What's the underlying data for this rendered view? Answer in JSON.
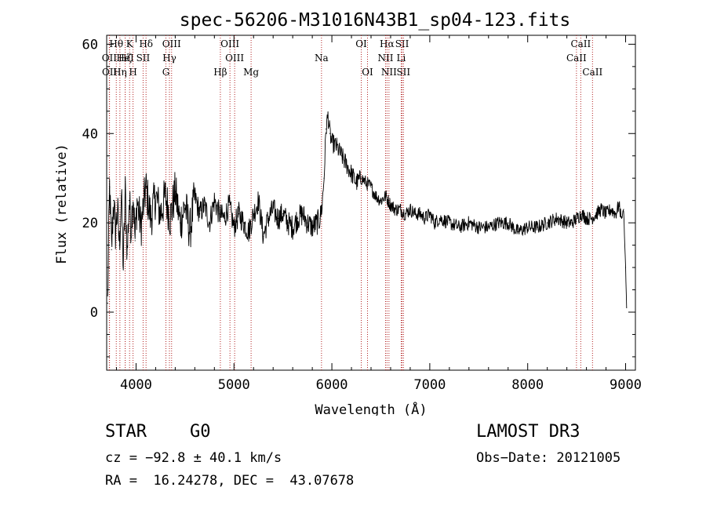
{
  "chart_data": {
    "type": "line",
    "title": "spec-56206-M31016N43B1_sp04-123.fits",
    "xlabel": "Wavelength (Å)",
    "ylabel": "Flux (relative)",
    "xlim": [
      3700,
      9100
    ],
    "ylim": [
      -13,
      62
    ],
    "x_ticks": [
      4000,
      5000,
      6000,
      7000,
      8000,
      9000
    ],
    "y_ticks": [
      0,
      20,
      40,
      60
    ],
    "line_color": "#000000",
    "marker_color": "#b22222",
    "series": [
      {
        "name": "flux",
        "x": [
          3710,
          3730,
          3750,
          3770,
          3790,
          3810,
          3830,
          3850,
          3870,
          3890,
          3910,
          3930,
          3950,
          3970,
          3990,
          4010,
          4050,
          4100,
          4150,
          4200,
          4250,
          4300,
          4350,
          4400,
          4450,
          4500,
          4550,
          4600,
          4650,
          4700,
          4750,
          4800,
          4850,
          4900,
          4950,
          5000,
          5050,
          5100,
          5150,
          5200,
          5250,
          5300,
          5350,
          5400,
          5450,
          5500,
          5550,
          5600,
          5650,
          5700,
          5750,
          5800,
          5850,
          5880,
          5900,
          5920,
          5940,
          5960,
          5980,
          6000,
          6050,
          6100,
          6150,
          6200,
          6250,
          6300,
          6350,
          6400,
          6450,
          6500,
          6550,
          6600,
          6650,
          6700,
          6750,
          6800,
          6850,
          6900,
          6950,
          7000,
          7050,
          7100,
          7200,
          7300,
          7400,
          7500,
          7600,
          7700,
          7800,
          7900,
          8000,
          8100,
          8200,
          8300,
          8400,
          8450,
          8500,
          8550,
          8600,
          8650,
          8700,
          8750,
          8800,
          8850,
          8900,
          8930,
          8960,
          8980,
          9000,
          9010
        ],
        "y": [
          2,
          28,
          14,
          25,
          18,
          23,
          15,
          26,
          10,
          27,
          13,
          25,
          19,
          27,
          16,
          25,
          19,
          28,
          21,
          26,
          22,
          26,
          21,
          27,
          20,
          24,
          18,
          26,
          22,
          24,
          20,
          25,
          22,
          21,
          24,
          19,
          22,
          20,
          18,
          22,
          25,
          17,
          21,
          23,
          21,
          22,
          20,
          19,
          21,
          22,
          20,
          19,
          20,
          21,
          24,
          30,
          41,
          44,
          40,
          38,
          37,
          35,
          33,
          31,
          29,
          30,
          29,
          28,
          26,
          25,
          26,
          24,
          23,
          23,
          22,
          23,
          22,
          22,
          21,
          22,
          20,
          21,
          20,
          19,
          20,
          19,
          19,
          20,
          20,
          18,
          19,
          19,
          20,
          21,
          20,
          20,
          21,
          22,
          21,
          21,
          22,
          23,
          22,
          23,
          22,
          24,
          21,
          23,
          10,
          1
        ]
      }
    ],
    "lines": [
      {
        "label": "Hθ",
        "wave": 3798,
        "row": 1
      },
      {
        "label": "OII",
        "wave": 3727,
        "row": 2
      },
      {
        "label": "OII",
        "wave": 3729,
        "row": 3
      },
      {
        "label": "K",
        "wave": 3934,
        "row": 1
      },
      {
        "label": "Hζ",
        "wave": 3889,
        "row": 2
      },
      {
        "label": "HeI",
        "wave": 3889,
        "row": 2
      },
      {
        "label": "Hη",
        "wave": 3835,
        "row": 3
      },
      {
        "label": "H",
        "wave": 3969,
        "row": 3
      },
      {
        "label": "SII",
        "wave": 4072,
        "row": 2
      },
      {
        "label": "Hδ",
        "wave": 4102,
        "row": 1
      },
      {
        "label": "OIII",
        "wave": 4363,
        "row": 1
      },
      {
        "label": "Hγ",
        "wave": 4341,
        "row": 2
      },
      {
        "label": "G",
        "wave": 4305,
        "row": 3
      },
      {
        "label": "OIII",
        "wave": 4959,
        "row": 1
      },
      {
        "label": "OIII",
        "wave": 5007,
        "row": 2
      },
      {
        "label": "Hβ",
        "wave": 4861,
        "row": 3
      },
      {
        "label": "Mg",
        "wave": 5175,
        "row": 3
      },
      {
        "label": "Na",
        "wave": 5894,
        "row": 2
      },
      {
        "label": "OI",
        "wave": 6300,
        "row": 1
      },
      {
        "label": "OI",
        "wave": 6364,
        "row": 3
      },
      {
        "label": "Hα",
        "wave": 6563,
        "row": 1
      },
      {
        "label": "NII",
        "wave": 6548,
        "row": 2
      },
      {
        "label": "NII",
        "wave": 6583,
        "row": 3
      },
      {
        "label": "SII",
        "wave": 6717,
        "row": 1
      },
      {
        "label": "Li",
        "wave": 6708,
        "row": 2
      },
      {
        "label": "SII",
        "wave": 6731,
        "row": 3
      },
      {
        "label": "CaII",
        "wave": 8542,
        "row": 1
      },
      {
        "label": "CaII",
        "wave": 8498,
        "row": 2
      },
      {
        "label": "CaII",
        "wave": 8662,
        "row": 3
      }
    ]
  },
  "info": {
    "class": "STAR",
    "subclass": "G0",
    "cz": "cz = −92.8 ± 40.1 km/s",
    "radec": "RA =  16.24278, DEC =  43.07678",
    "survey": "LAMOST DR3",
    "obs_date": "Obs−Date: 20121005"
  }
}
